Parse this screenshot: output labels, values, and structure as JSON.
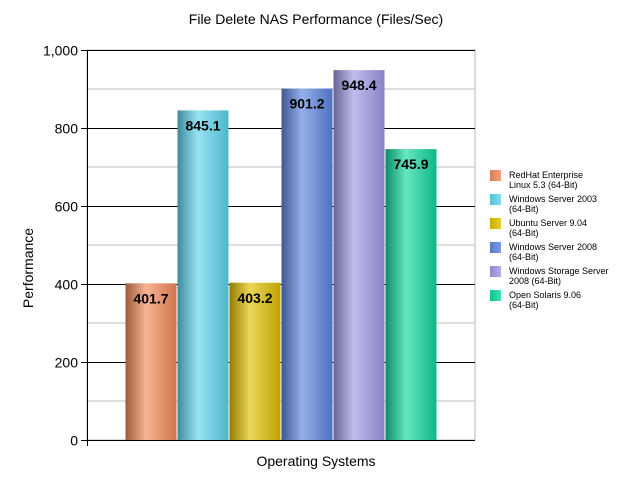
{
  "chart_data": {
    "type": "bar",
    "title": "File Delete NAS Performance (Files/Sec)",
    "xlabel": "Operating Systems",
    "ylabel": "Performance",
    "ylim": [
      0,
      1000
    ],
    "yticks": [
      "0",
      "200",
      "400",
      "600",
      "800",
      "1,000"
    ],
    "grid": true,
    "legend_position": "right",
    "series": [
      {
        "name": "RedHat Enterprise Linux 5.3 (64-Bit)",
        "value": 401.7,
        "label": "401.7",
        "color": "#f48a5a"
      },
      {
        "name": "Windows Server 2003 (64-Bit)",
        "value": 845.1,
        "label": "845.1",
        "color": "#5ed6ee"
      },
      {
        "name": "Ubuntu Server 9.04 (64-Bit)",
        "value": 403.2,
        "label": "403.2",
        "color": "#e0c000"
      },
      {
        "name": "Windows Server 2008 (64-Bit)",
        "value": 901.2,
        "label": "901.2",
        "color": "#5c86e0"
      },
      {
        "name": "Windows Storage Server 2008 (64-Bit)",
        "value": 948.4,
        "label": "948.4",
        "color": "#9e9ae6"
      },
      {
        "name": "Open Solaris 9.06 (64-Bit)",
        "value": 745.9,
        "label": "745.9",
        "color": "#12d89e"
      }
    ]
  }
}
